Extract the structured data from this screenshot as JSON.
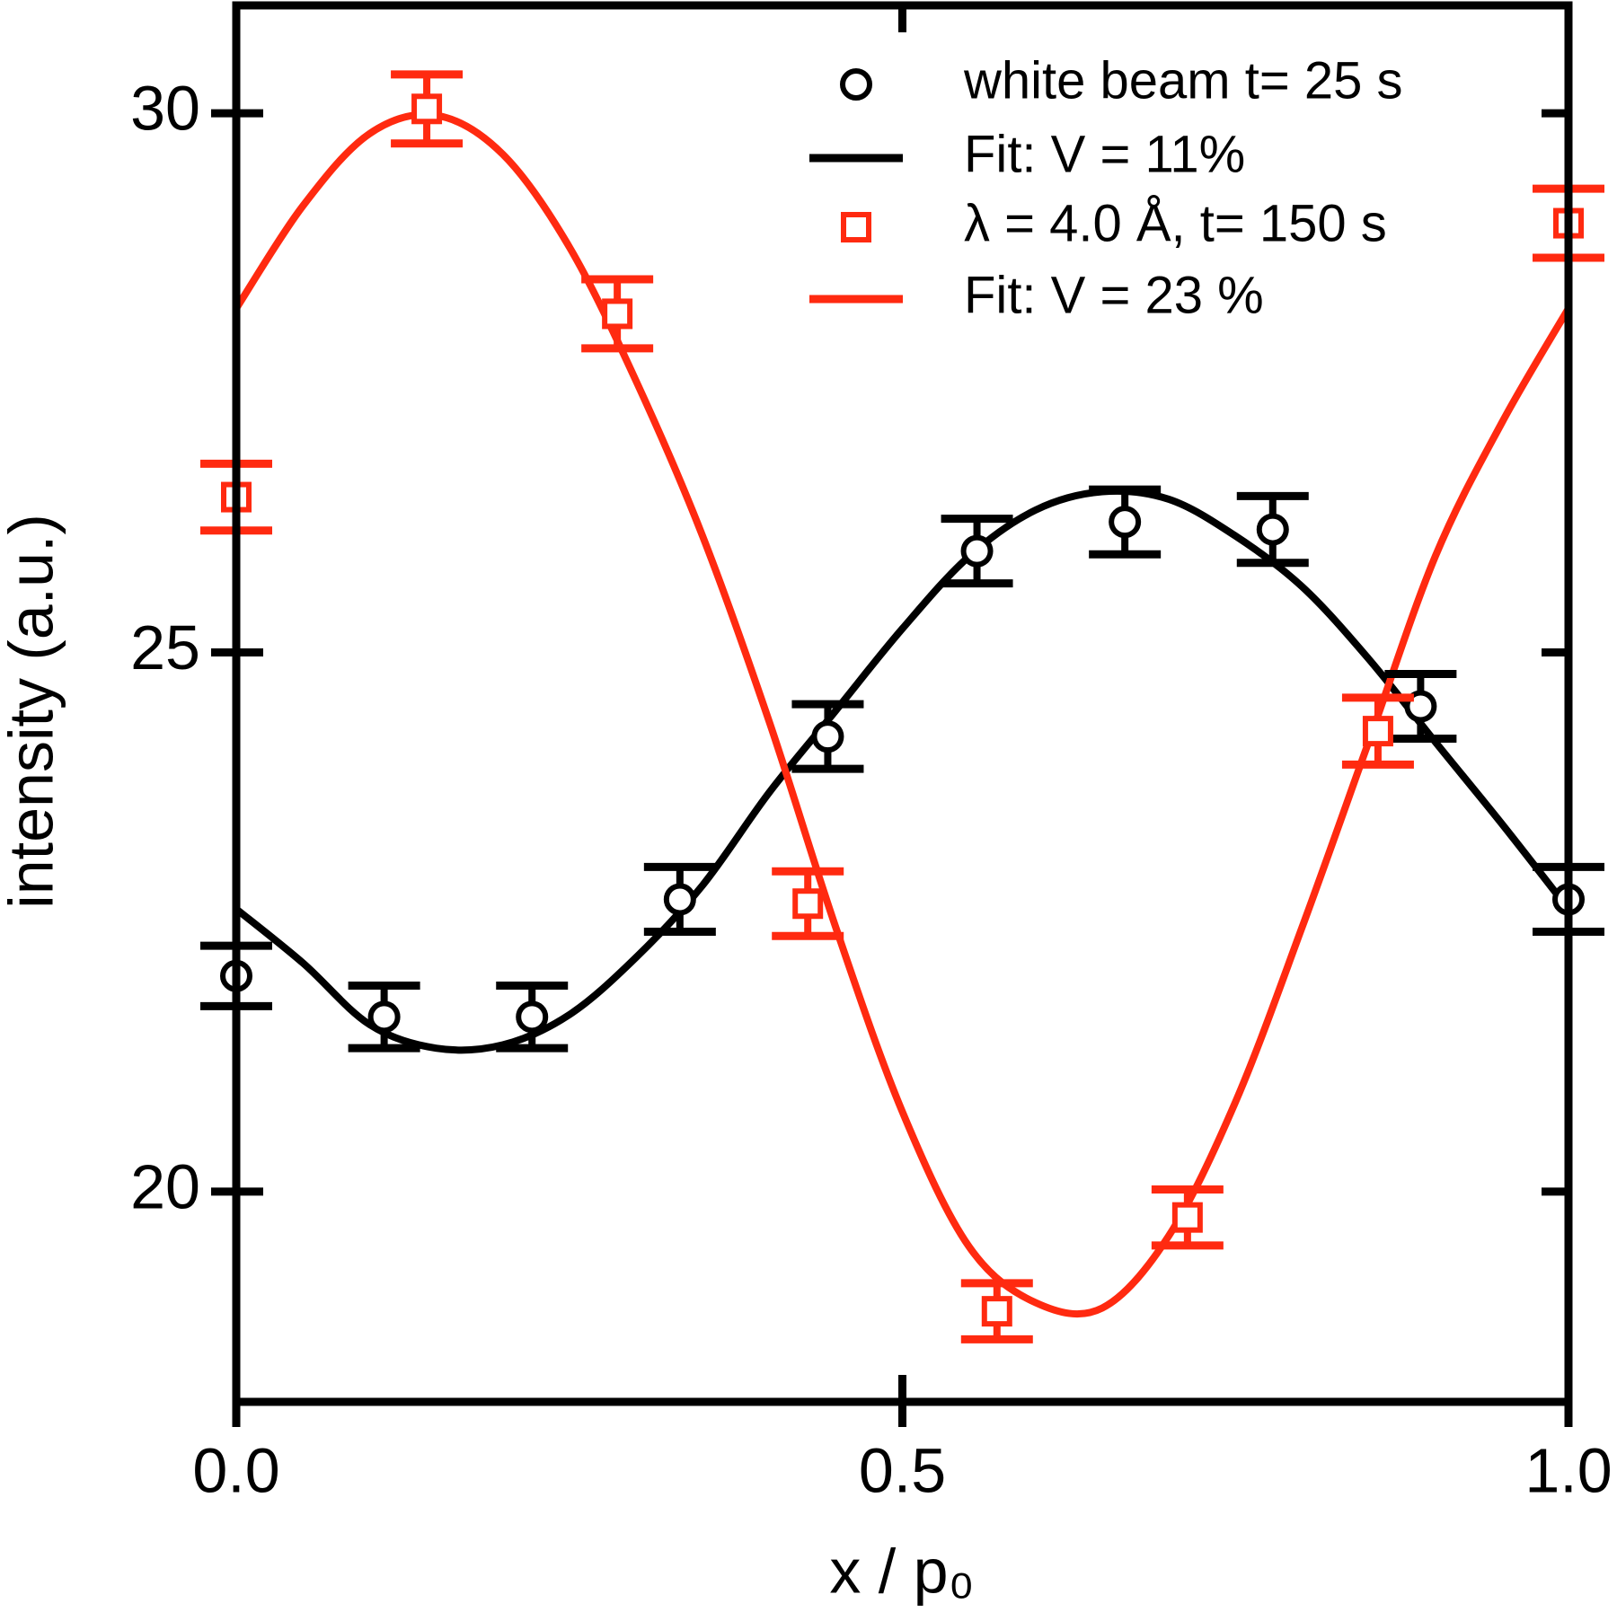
{
  "chart_data": {
    "type": "scatter",
    "x_label": "x / p₀",
    "y_label": "intensity (a.u.)",
    "xlim": [
      0,
      1.0
    ],
    "ylim": [
      18.05,
      31.0
    ],
    "xticks": [
      {
        "value": 0,
        "label": "0.0"
      },
      {
        "value": 0.5,
        "label": "0.5"
      },
      {
        "value": 1.0,
        "label": "1.0"
      }
    ],
    "yticks": [
      20,
      25,
      30
    ],
    "legend": "upper right",
    "series": [
      {
        "name": "white beam t= 25 s",
        "color": "#000000",
        "marker": "circle",
        "x": [
          0,
          0.111,
          0.222,
          0.333,
          0.444,
          0.556,
          0.667,
          0.778,
          0.889,
          1.0
        ],
        "values": [
          22.0,
          21.62,
          21.62,
          22.71,
          24.22,
          25.94,
          26.21,
          26.14,
          24.5,
          22.71
        ],
        "errors": [
          0.28,
          0.29,
          0.29,
          0.3,
          0.3,
          0.3,
          0.3,
          0.31,
          0.3,
          0.3
        ]
      },
      {
        "name": "Fit: V = 11%",
        "color": "#000000",
        "marker": "line",
        "x": [
          0,
          0.05,
          0.1,
          0.15,
          0.2,
          0.25,
          0.3,
          0.35,
          0.4,
          0.45,
          0.5,
          0.55,
          0.6,
          0.65,
          0.7,
          0.75,
          0.8,
          0.85,
          0.9,
          0.95,
          1.0
        ],
        "values": [
          22.62,
          22.12,
          21.55,
          21.33,
          21.36,
          21.64,
          22.17,
          22.84,
          23.7,
          24.46,
          25.22,
          25.89,
          26.32,
          26.49,
          26.42,
          26.08,
          25.61,
          24.94,
          24.17,
          23.41,
          22.62
        ]
      },
      {
        "name": "λ = 4.0 Å, t= 150 s",
        "color": "#ff2a10",
        "marker": "square",
        "x": [
          0,
          0.143,
          0.286,
          0.429,
          0.571,
          0.714,
          0.857,
          1.0
        ],
        "values": [
          26.44,
          30.04,
          28.14,
          22.67,
          18.89,
          19.76,
          24.27,
          28.98
        ],
        "errors": [
          0.31,
          0.32,
          0.32,
          0.3,
          0.26,
          0.26,
          0.31,
          0.32
        ]
      },
      {
        "name": "Fit: V = 23 %",
        "color": "#ff2a10",
        "marker": "line",
        "x": [
          0,
          0.05,
          0.1,
          0.15,
          0.2,
          0.25,
          0.3,
          0.35,
          0.4,
          0.45,
          0.5,
          0.55,
          0.6,
          0.65,
          0.7,
          0.75,
          0.8,
          0.85,
          0.9,
          0.95,
          1.0
        ],
        "values": [
          28.19,
          29.14,
          29.81,
          29.98,
          29.62,
          28.76,
          27.52,
          26.08,
          24.36,
          22.45,
          20.74,
          19.49,
          18.97,
          18.92,
          19.59,
          20.83,
          22.45,
          24.17,
          25.89,
          27.13,
          28.19
        ]
      }
    ]
  }
}
